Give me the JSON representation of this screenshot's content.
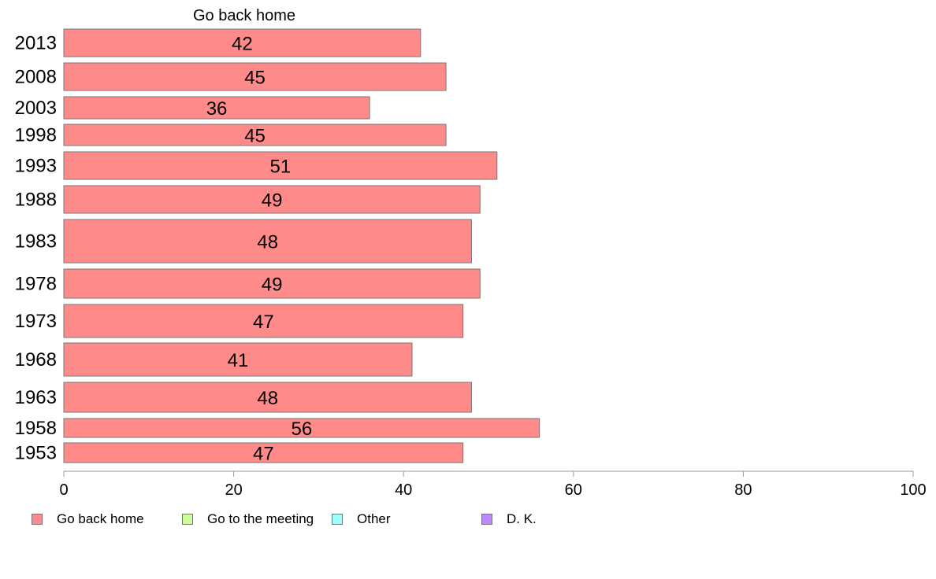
{
  "chart_data": {
    "type": "bar",
    "orientation": "horizontal",
    "series_title": "Go back home",
    "categories": [
      "2013",
      "2008",
      "2003",
      "1998",
      "1993",
      "1988",
      "1983",
      "1978",
      "1973",
      "1968",
      "1963",
      "1958",
      "1953"
    ],
    "series": [
      {
        "name": "Go back home",
        "color": "#ff8a8a",
        "values": [
          42,
          45,
          36,
          45,
          51,
          49,
          48,
          49,
          47,
          41,
          48,
          56,
          47
        ],
        "labels": [
          "42",
          "45",
          "36",
          "45",
          "51",
          "49",
          "48",
          "49",
          "47",
          "41",
          "48",
          "56",
          "47"
        ]
      }
    ],
    "xlim": [
      0,
      100
    ],
    "xticks": [
      0,
      20,
      40,
      60,
      80,
      100
    ],
    "xtick_labels": [
      "0",
      "20",
      "40",
      "60",
      "80",
      "100"
    ],
    "grid": false,
    "legend": {
      "position": "bottom-left",
      "entries": [
        {
          "label": "Go back home",
          "color": "#ff8a8a"
        },
        {
          "label": "Go to the meeting",
          "color": "#ccff99"
        },
        {
          "label": "Other",
          "color": "#99ffff"
        },
        {
          "label": "D. K.",
          "color": "#bb88ff"
        }
      ]
    }
  }
}
